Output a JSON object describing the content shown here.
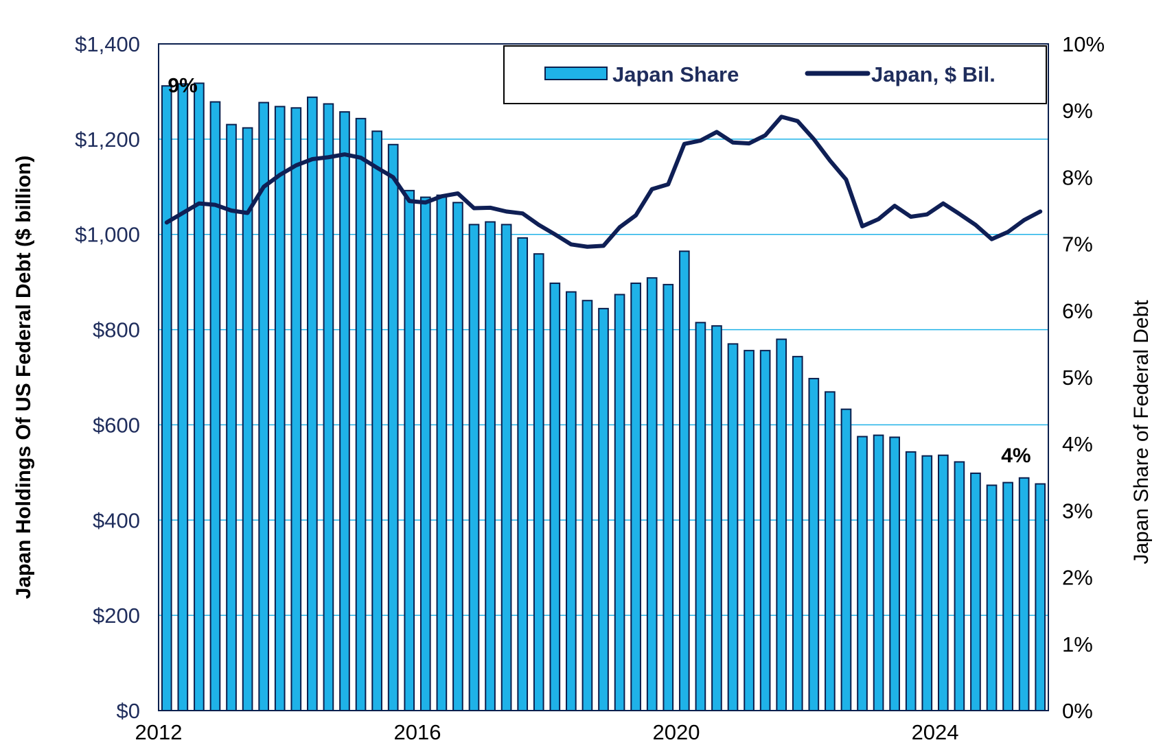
{
  "chart_data": {
    "type": "bar+line",
    "title": "",
    "xlabel": "",
    "ylabel_left": "Japan Holdings Of US Federal Debt ($ billion)",
    "ylabel_right": "Japan Share of Federal Debt",
    "ylim_left": [
      0,
      1400
    ],
    "ylim_right": [
      0,
      10
    ],
    "y_ticks_left": [
      "$0",
      "$200",
      "$400",
      "$600",
      "$800",
      "$1,000",
      "$1,200",
      "$1,400"
    ],
    "y_ticks_right": [
      "0%",
      "1%",
      "2%",
      "3%",
      "4%",
      "5%",
      "6%",
      "7%",
      "8%",
      "9%",
      "10%"
    ],
    "x_ticks": [
      "2012",
      "2016",
      "2020",
      "2024"
    ],
    "x_range": [
      2012.0,
      2025.75
    ],
    "gridlines": "horizontal",
    "legend_position": "top-right",
    "colors": {
      "bar_fill": "#1fb2e8",
      "bar_stroke": "#0b1f4d",
      "line": "#0f1f55",
      "grid": "#1fb2e8",
      "tick_left": "#1f2d5c"
    },
    "annotations": [
      {
        "text": "9%",
        "x": 2012.1,
        "y_right": 9.4
      },
      {
        "text": "4%",
        "x": 2025.25,
        "y_right": 3.85
      }
    ],
    "series": [
      {
        "name": "Japan Share",
        "type": "bar",
        "axis": "right",
        "x": [
          2012.125,
          2012.375,
          2012.625,
          2012.875,
          2013.125,
          2013.375,
          2013.625,
          2013.875,
          2014.125,
          2014.375,
          2014.625,
          2014.875,
          2015.125,
          2015.375,
          2015.625,
          2015.875,
          2016.125,
          2016.375,
          2016.625,
          2016.875,
          2017.125,
          2017.375,
          2017.625,
          2017.875,
          2018.125,
          2018.375,
          2018.625,
          2018.875,
          2019.125,
          2019.375,
          2019.625,
          2019.875,
          2020.125,
          2020.375,
          2020.625,
          2020.875,
          2021.125,
          2021.375,
          2021.625,
          2021.875,
          2022.125,
          2022.375,
          2022.625,
          2022.875,
          2023.125,
          2023.375,
          2023.625,
          2023.875,
          2024.125,
          2024.375,
          2024.625,
          2024.875,
          2025.125,
          2025.375,
          2025.625
        ],
        "values": [
          9.37,
          9.4,
          9.41,
          9.13,
          8.79,
          8.74,
          9.12,
          9.06,
          9.04,
          9.2,
          9.1,
          8.98,
          8.88,
          8.69,
          8.49,
          7.8,
          7.7,
          7.73,
          7.62,
          7.29,
          7.33,
          7.29,
          7.09,
          6.85,
          6.41,
          6.28,
          6.15,
          6.03,
          6.24,
          6.41,
          6.49,
          6.39,
          6.89,
          5.82,
          5.77,
          5.5,
          5.4,
          5.4,
          5.57,
          5.31,
          4.98,
          4.78,
          4.52,
          4.11,
          4.13,
          4.1,
          3.88,
          3.82,
          3.83,
          3.73,
          3.56,
          3.38,
          3.42,
          3.49,
          3.4
        ]
      },
      {
        "name": "Japan, $ Bil.",
        "type": "line",
        "axis": "left",
        "x": [
          2012.125,
          2012.375,
          2012.625,
          2012.875,
          2013.125,
          2013.375,
          2013.625,
          2013.875,
          2014.125,
          2014.375,
          2014.625,
          2014.875,
          2015.125,
          2015.375,
          2015.625,
          2015.875,
          2016.125,
          2016.375,
          2016.625,
          2016.875,
          2017.125,
          2017.375,
          2017.625,
          2017.875,
          2018.125,
          2018.375,
          2018.625,
          2018.875,
          2019.125,
          2019.375,
          2019.625,
          2019.875,
          2020.125,
          2020.375,
          2020.625,
          2020.875,
          2021.125,
          2021.375,
          2021.625,
          2021.875,
          2022.125,
          2022.375,
          2022.625,
          2022.875,
          2023.125,
          2023.375,
          2023.625,
          2023.875,
          2024.125,
          2024.375,
          2024.625,
          2024.875,
          2025.125,
          2025.375,
          2025.625
        ],
        "values": [
          1025,
          1045,
          1065,
          1062,
          1050,
          1045,
          1100,
          1125,
          1145,
          1158,
          1162,
          1168,
          1161,
          1140,
          1120,
          1070,
          1067,
          1080,
          1086,
          1055,
          1056,
          1048,
          1044,
          1020,
          1000,
          979,
          974,
          976,
          1015,
          1040,
          1095,
          1105,
          1190,
          1197,
          1215,
          1193,
          1191,
          1208,
          1247,
          1238,
          1200,
          1155,
          1115,
          1017,
          1032,
          1060,
          1037,
          1042,
          1065,
          1043,
          1020,
          990,
          1005,
          1030,
          1048
        ]
      }
    ]
  }
}
